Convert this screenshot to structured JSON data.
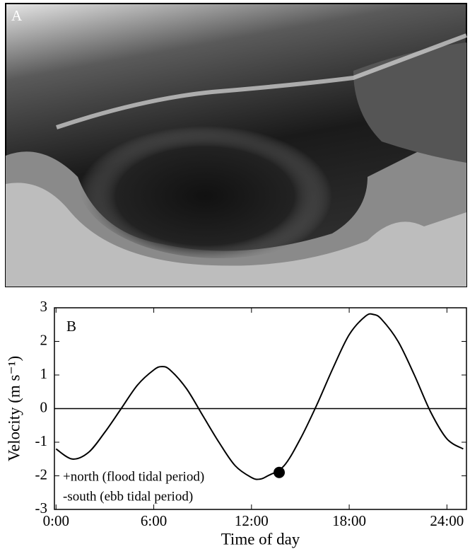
{
  "panel_a": {
    "label": "A"
  },
  "chart_data": {
    "type": "line",
    "panel_label": "B",
    "x_label": "Time of day",
    "y_label": "Velocity (m s⁻¹)",
    "x": [
      0,
      1,
      2,
      3,
      4,
      5,
      6,
      6.5,
      7,
      8,
      9,
      10,
      11,
      12,
      12.5,
      13,
      14,
      15,
      16,
      17,
      18,
      19,
      19.5,
      20,
      21,
      22,
      23,
      24,
      25
    ],
    "series": [
      {
        "color": "#000000",
        "values": [
          -1.2,
          -1.5,
          -1.3,
          -0.7,
          0.0,
          0.7,
          1.15,
          1.25,
          1.15,
          0.6,
          -0.2,
          -1.0,
          -1.7,
          -2.05,
          -2.1,
          -2.0,
          -1.7,
          -0.9,
          0.1,
          1.2,
          2.2,
          2.75,
          2.8,
          2.65,
          2.0,
          1.0,
          -0.1,
          -0.9,
          -1.2
        ]
      }
    ],
    "highlight": {
      "x": 13.7,
      "y": -1.9,
      "color": "#000000"
    },
    "annotations": [
      "+north (flood tidal period)",
      "-south (ebb tidal period)"
    ],
    "xlim": [
      -0.1,
      25.2
    ],
    "ylim": [
      -3,
      3
    ],
    "xticks": [
      {
        "value": 0,
        "label": "0:00"
      },
      {
        "value": 6,
        "label": "6:00"
      },
      {
        "value": 12,
        "label": "12:00"
      },
      {
        "value": 18,
        "label": "18:00"
      },
      {
        "value": 24,
        "label": "24:00"
      }
    ],
    "yticks": [
      -3,
      -2,
      -1,
      0,
      1,
      2,
      3
    ],
    "zero_line": true
  }
}
